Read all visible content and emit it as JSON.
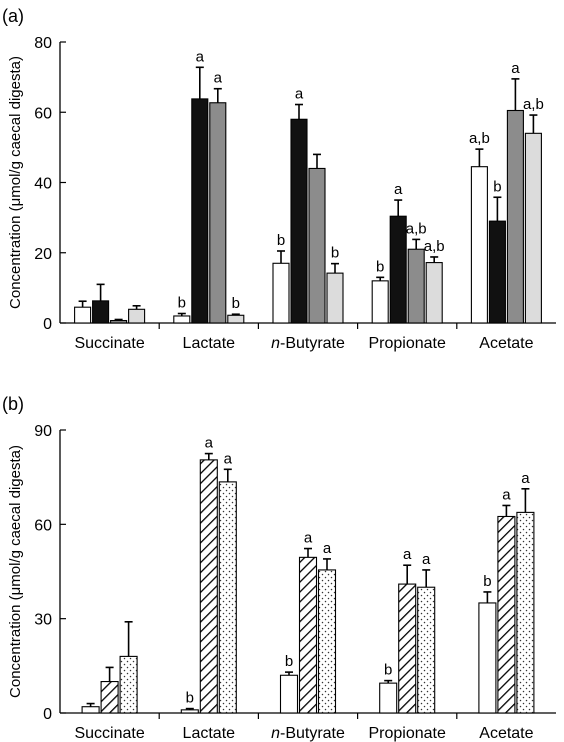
{
  "chart_data": [
    {
      "panel_label": "(a)",
      "type": "bar",
      "ylabel": "Concentration (μmol/g caecal digesta)",
      "ylim": [
        0,
        80
      ],
      "yticks": [
        "0",
        "20",
        "40",
        "60",
        "80"
      ],
      "categories": [
        "Succinate",
        "Lactate",
        "n-Butyrate",
        "Propionate",
        "Acetate"
      ],
      "grid": false,
      "legend": "none",
      "series": [
        {
          "fill": "#ffffff",
          "pattern": "none",
          "values": [
            4.5,
            2.0,
            17.0,
            12.0,
            44.5
          ],
          "errors": [
            1.7,
            0.7,
            3.5,
            1.0,
            5.0
          ],
          "labels": [
            "",
            "b",
            "b",
            "b",
            "a,b"
          ]
        },
        {
          "fill": "#111111",
          "pattern": "none",
          "values": [
            6.3,
            63.8,
            58.0,
            30.4,
            29.0
          ],
          "errors": [
            4.7,
            9.0,
            4.2,
            4.6,
            6.8
          ],
          "labels": [
            "",
            "a",
            "a",
            "a",
            "b"
          ]
        },
        {
          "fill": "#8c8c8c",
          "pattern": "none",
          "values": [
            0.7,
            62.7,
            44.0,
            21.0,
            60.5
          ],
          "errors": [
            0.3,
            4.0,
            4.0,
            2.8,
            9.0
          ],
          "labels": [
            "",
            "a",
            "",
            "a,b",
            "a"
          ]
        },
        {
          "fill": "#dcdcdc",
          "pattern": "none",
          "values": [
            3.9,
            2.2,
            14.2,
            17.2,
            54.0
          ],
          "errors": [
            1.0,
            0.3,
            2.7,
            1.6,
            5.2
          ],
          "labels": [
            "",
            "b",
            "b",
            "a,b",
            "a,b"
          ]
        }
      ]
    },
    {
      "panel_label": "(b)",
      "type": "bar",
      "ylabel": "Concentration (μmol/g caecal digesta)",
      "ylim": [
        0,
        90
      ],
      "yticks": [
        "0",
        "30",
        "60",
        "90"
      ],
      "categories": [
        "Succinate",
        "Lactate",
        "n-Butyrate",
        "Propionate",
        "Acetate"
      ],
      "grid": false,
      "legend": "none",
      "series": [
        {
          "fill": "#ffffff",
          "pattern": "none",
          "values": [
            2.0,
            1.0,
            12.0,
            9.5,
            35.0
          ],
          "errors": [
            1.0,
            0.4,
            1.0,
            0.8,
            3.5
          ],
          "labels": [
            "",
            "b",
            "b",
            "b",
            "b"
          ]
        },
        {
          "fill": "#ffffff",
          "pattern": "diagonal",
          "values": [
            10.0,
            80.5,
            49.5,
            41.0,
            62.5
          ],
          "errors": [
            4.5,
            2.0,
            2.8,
            6.0,
            3.5
          ],
          "labels": [
            "",
            "a",
            "a",
            "a",
            "a"
          ]
        },
        {
          "fill": "#ffffff",
          "pattern": "dotted",
          "values": [
            18.0,
            73.5,
            45.5,
            40.0,
            63.8
          ],
          "errors": [
            11.0,
            4.0,
            3.5,
            5.5,
            7.5
          ],
          "labels": [
            "",
            "a",
            "a",
            "a",
            "a"
          ]
        }
      ]
    }
  ]
}
